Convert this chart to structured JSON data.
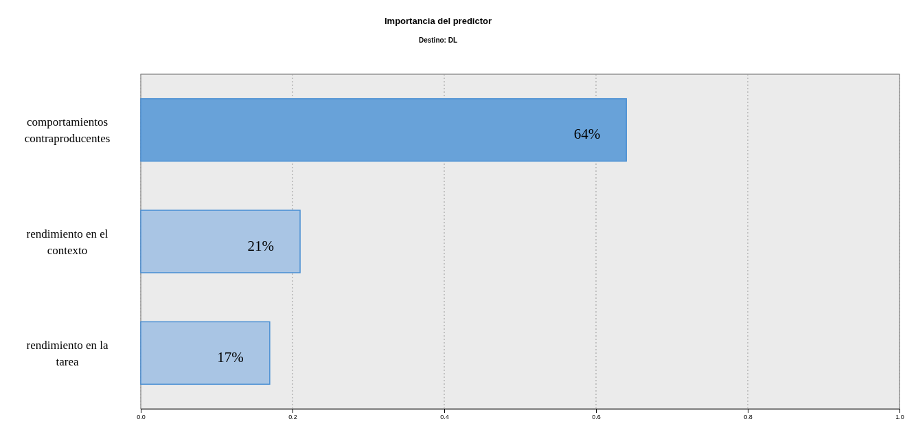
{
  "chart_data": {
    "type": "bar",
    "orientation": "horizontal",
    "title": "Importancia del predictor",
    "subtitle": "Destino: DL",
    "categories": [
      "comportamientos contraproducentes",
      "rendimiento en el contexto",
      "rendimiento en la tarea"
    ],
    "values": [
      0.64,
      0.21,
      0.17
    ],
    "colors": [
      "#68a2d9",
      "#a9c5e4",
      "#a9c5e4"
    ],
    "value_labels": [
      "64%",
      "21%",
      "17%"
    ],
    "xlim": [
      0,
      1
    ],
    "xticks": [
      {
        "value": 0,
        "label": "0.0"
      },
      {
        "value": 0.2,
        "label": "0.2"
      },
      {
        "value": 0.4,
        "label": "0.4"
      },
      {
        "value": 0.6,
        "label": "0.6"
      },
      {
        "value": 0.8,
        "label": "0.8"
      },
      {
        "value": 1,
        "label": "1.0"
      }
    ],
    "grid": "x"
  }
}
